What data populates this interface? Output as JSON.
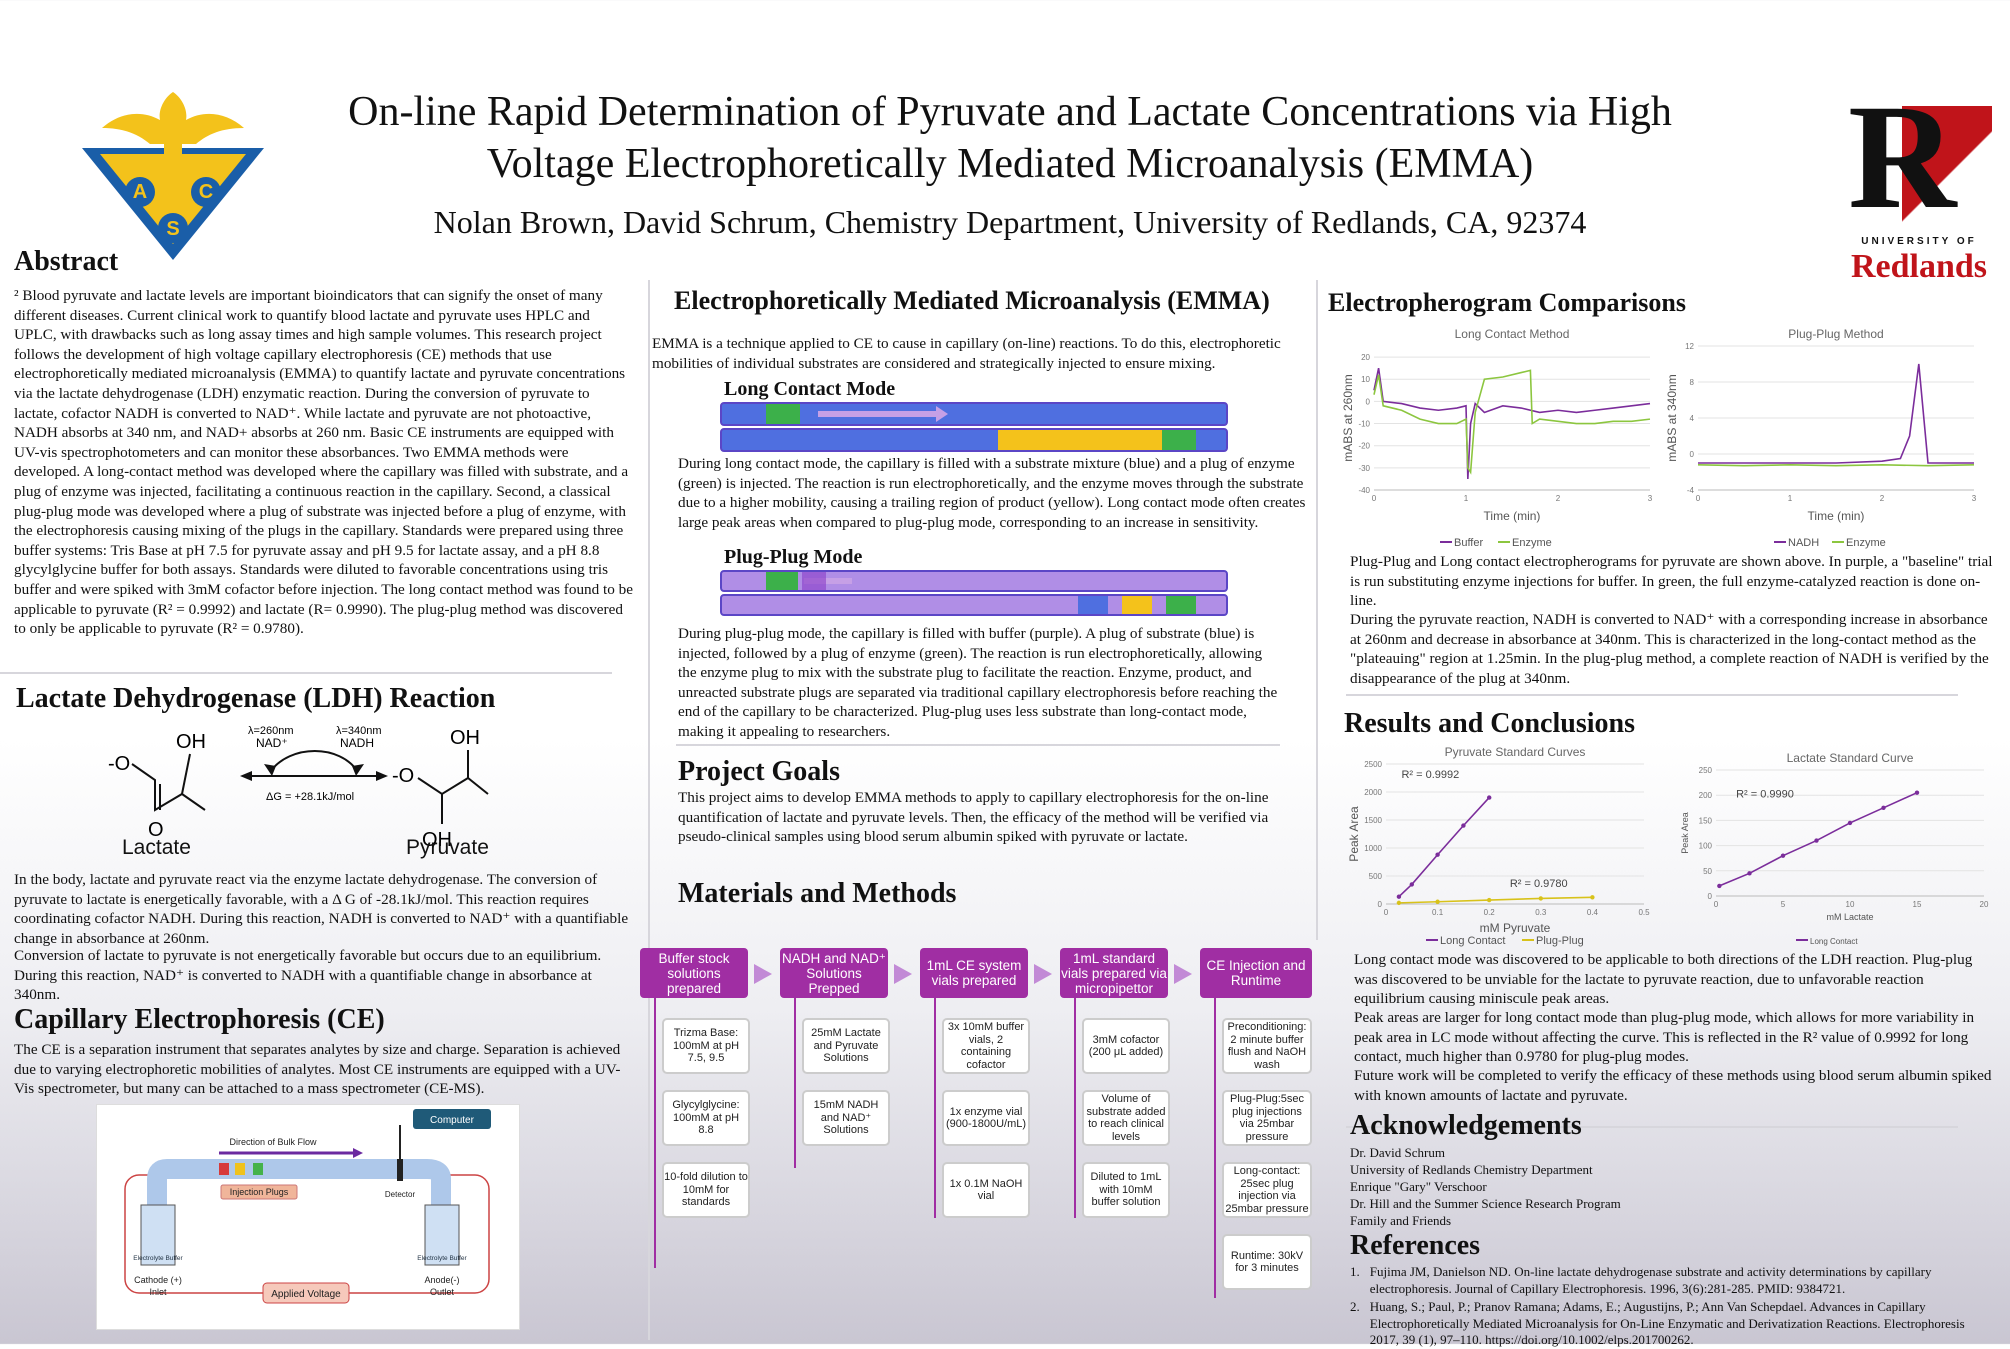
{
  "title_line1": "On-line Rapid Determination of Pyruvate and Lactate Concentrations via High",
  "title_line2": "Voltage Electrophoretically Mediated Microanalysis (EMMA)",
  "authors": "Nolan Brown, David Schrum, Chemistry Department, University of Redlands, CA, 92374",
  "acs_logo": {
    "letters": [
      "A",
      "C",
      "S"
    ]
  },
  "redlands_logo": {
    "letter": "R",
    "line1": "UNIVERSITY OF",
    "line2": "Redlands",
    "accent": "#c0141a"
  },
  "abstract": {
    "heading": "Abstract",
    "text": "² Blood pyruvate and lactate levels are important bioindicators that can signify the onset of many different diseases. Current clinical work to quantify blood lactate and pyruvate uses HPLC and UPLC, with drawbacks such as long assay times and high sample volumes. This research project follows the development of high voltage capillary electrophoresis (CE) methods that use electrophoretically mediated microanalysis (EMMA) to quantify lactate and pyruvate concentrations via the lactate dehydrogenase (LDH) enzymatic reaction. During the conversion of pyruvate to lactate, cofactor NADH is converted to NAD⁺. While lactate and pyruvate are not photoactive, NADH absorbs at 340 nm, and NAD+ absorbs at 260 nm. Basic CE instruments are equipped with UV-vis spectrophotometers and can monitor these absorbances. Two EMMA methods were developed. A long-contact method was developed where the capillary was filled with substrate, and a plug of enzyme was injected, facilitating a continuous reaction in the capillary. Second, a classical plug-plug mode was developed where a plug of substrate was injected before a plug of enzyme, with the electrophoresis causing mixing of the plugs in the capillary. Standards were prepared using three buffer systems: Tris Base at pH 7.5 for pyruvate assay and pH 9.5 for lactate assay, and a pH 8.8 glycylglycine buffer for both assays. Standards were diluted to favorable concentrations using tris buffer and were spiked with 3mM cofactor before injection. The long contact method was found to be applicable to pyruvate (R² = 0.9992) and lactate (R= 0.9990). The plug-plug method was discovered to only be applicable to pyruvate (R² = 0.9780)."
  },
  "ldh": {
    "heading": "Lactate Dehydrogenase (LDH) Reaction",
    "left_label": "Lactate",
    "right_label": "Pyruvate",
    "oh": "OH",
    "o": "O",
    "ominus": "-O",
    "lam1": "λ=260nm",
    "nadp": "NAD⁺",
    "lam2": "λ=340nm",
    "nadh": "NADH",
    "dg": "ΔG = +28.1kJ/mol",
    "text1": "In the body, lactate and pyruvate react via the enzyme lactate dehydrogenase. The conversion of pyruvate to lactate is energetically favorable, with a Δ G of  -28.1kJ/mol. This reaction requires coordinating cofactor NADH. During this reaction, NADH is converted to NAD⁺ with a quantifiable change in absorbance at 260nm.",
    "text2": "Conversion of lactate to pyruvate is not energetically favorable but occurs due to an equilibrium. During this reaction, NAD⁺ is converted to NADH with a quantifiable change in absorbance at 340nm."
  },
  "ce": {
    "heading": "Capillary Electrophoresis (CE)",
    "text": "The CE is a separation instrument that separates analytes by size and charge. Separation is achieved due to varying electrophoretic mobilities of analytes. Most CE instruments are equipped with a UV-Vis spectrometer, but many can be attached to a mass spectrometer (CE-MS).",
    "diagram": {
      "computer": "Computer",
      "bulk_flow": "Direction of Bulk Flow",
      "injection_plugs": "Injection Plugs",
      "detector": "Detector",
      "buffer_left": "Electrolyte Buffer",
      "buffer_right": "Electrolyte Buffer",
      "cathode": "Cathode (+)",
      "inlet": "Inlet",
      "anode": "Anode(-)",
      "outlet": "Outlet",
      "applied_voltage": "Applied Voltage"
    }
  },
  "emma": {
    "heading": "Electrophoretically Mediated Microanalysis (EMMA)",
    "intro": "EMMA is a technique applied to CE to cause in capillary (on-line) reactions. To do this, electrophoretic mobilities of individual substrates are considered and strategically injected to ensure mixing.",
    "long_contact_title": "Long Contact Mode",
    "long_contact_text": "During long contact mode, the capillary is filled with a substrate mixture (blue) and a plug of enzyme (green) is injected. The reaction is run electrophoretically, and the enzyme moves through the substrate due to a higher mobility, causing a trailing region of product (yellow). Long contact mode often creates large peak areas when compared to plug-plug mode, corresponding to an increase in sensitivity.",
    "plug_plug_title": "Plug-Plug Mode",
    "plug_plug_text": "During plug-plug mode, the capillary is filled with buffer (purple). A plug of substrate (blue) is injected, followed by a plug of enzyme (green). The reaction is run electrophoretically, allowing the enzyme plug to mix with the substrate plug to facilitate the reaction. Enzyme, product, and unreacted substrate plugs are separated via traditional capillary electrophoresis before reaching the end of the capillary to be characterized. Plug-plug uses less substrate than long-contact mode, making it appealing to researchers."
  },
  "goals": {
    "heading": "Project Goals",
    "text": "This project aims to develop EMMA methods to apply to capillary electrophoresis for the on-line quantification of lactate and pyruvate levels. Then, the efficacy of the method will be verified via pseudo-clinical samples using blood serum albumin spiked with pyruvate or lactate."
  },
  "methods": {
    "heading": "Materials and Methods",
    "columns": [
      {
        "head": "Buffer stock solutions prepared",
        "boxes": [
          "Trizma Base: 100mM at pH 7.5, 9.5",
          "Glycylglycine: 100mM at pH 8.8",
          "10-fold dilution to 10mM for standards"
        ]
      },
      {
        "head": "NADH and NAD⁺ Solutions Prepped",
        "boxes": [
          "25mM Lactate and Pyruvate Solutions",
          "15mM NADH and NAD⁺ Solutions"
        ]
      },
      {
        "head": "1mL CE system vials prepared",
        "boxes": [
          "3x 10mM buffer vials, 2 containing cofactor",
          "1x enzyme vial (900-1800U/mL)",
          "1x 0.1M NaOH vial"
        ]
      },
      {
        "head": "1mL standard vials prepared via micropipettor",
        "boxes": [
          "3mM cofactor (200 μL added)",
          "Volume of substrate added to reach clinical levels",
          "Diluted to 1mL with 10mM buffer solution"
        ]
      },
      {
        "head": "CE Injection and Runtime",
        "boxes": [
          "Preconditioning: 2 minute buffer flush and NaOH wash",
          "Plug-Plug:5sec plug injections via 25mbar pressure",
          "Long-contact: 25sec plug injection via 25mbar pressure",
          "Runtime: 30kV for 3 minutes"
        ]
      }
    ]
  },
  "electropherogram": {
    "heading": "Electropherogram Comparisons",
    "text1": "Plug-Plug and Long contact electropherograms for pyruvate are shown above. In purple, a \"baseline\" trial is run substituting enzyme injections for buffer. In green, the full enzyme-catalyzed reaction is done on-line.",
    "text2": "During the pyruvate reaction, NADH is converted to NAD⁺ with a corresponding increase in absorbance at 260nm and decrease in absorbance at 340nm. This is characterized in the long-contact method as the \"plateauing\" region at 1.25min. In the plug-plug method, a complete reaction of NADH is verified by the disappearance of the plug at 340nm."
  },
  "results": {
    "heading": "Results and Conclusions",
    "text1": "Long contact mode was discovered to be applicable to both directions of the LDH reaction. Plug-plug was discovered to be unviable for the lactate to pyruvate reaction, due to unfavorable reaction equilibrium causing miniscule peak areas.",
    "text2": "Peak areas are larger for long contact mode than plug-plug mode, which allows for more variability in peak area in LC mode without affecting the curve. This is reflected in the R² value of 0.9992 for long contact, much higher than 0.9780 for plug-plug modes.",
    "text3": "Future work will be completed to verify the efficacy of these methods using blood serum albumin spiked with known amounts of lactate and pyruvate."
  },
  "ack": {
    "heading": "Acknowledgements",
    "lines": [
      "Dr. David Schrum",
      "University of Redlands Chemistry Department",
      "Enrique \"Gary\" Verschoor",
      "Dr. Hill and the Summer Science Research Program",
      "Family and Friends"
    ]
  },
  "refs": {
    "heading": "References",
    "items": [
      {
        "num": "1.",
        "text": "Fujima JM, Danielson ND. On-line lactate dehydrogenase substrate and activity determinations by capillary electrophoresis. Journal of Capillary Electrophoresis. 1996, 3(6):281-285. PMID: 9384721."
      },
      {
        "num": "2.",
        "text": "Huang, S.; Paul, P.; Pranov Ramana; Adams, E.; Augustijns, P.; Ann Van Schepdael. Advances in Capillary Electrophoretically Mediated Microanalysis for On-Line Enzymatic and Derivatization Reactions. Electrophoresis 2017, 39 (1), 97–110. https://doi.org/10.1002/elps.201700262."
      }
    ]
  },
  "chart_data": [
    {
      "type": "line",
      "title": "Long Contact Method",
      "xlabel": "Time (min)",
      "ylabel": "mABS at 260nm",
      "xlim": [
        0,
        3
      ],
      "ylim": [
        -40,
        25
      ],
      "series": [
        {
          "name": "Buffer",
          "color": "#7b2d9b",
          "x": [
            0,
            0.05,
            0.1,
            0.3,
            0.5,
            0.7,
            0.9,
            1.0,
            1.02,
            1.05,
            1.1,
            1.2,
            1.4,
            1.6,
            1.8,
            2.0,
            2.2,
            2.4,
            2.6,
            2.8,
            3.0
          ],
          "y": [
            5,
            15,
            0,
            -1,
            -3,
            -4,
            -3,
            -2,
            -35,
            -10,
            -1,
            -5,
            -2,
            -3,
            -5,
            -4,
            -5,
            -4,
            -3,
            -2,
            -1
          ]
        },
        {
          "name": "Enzyme",
          "color": "#8cc63f",
          "x": [
            0,
            0.05,
            0.1,
            0.3,
            0.5,
            0.7,
            0.9,
            1.0,
            1.02,
            1.05,
            1.1,
            1.2,
            1.4,
            1.6,
            1.7,
            1.72,
            1.8,
            2.0,
            2.2,
            2.4,
            2.6,
            2.8,
            3.0
          ],
          "y": [
            3,
            12,
            -2,
            -4,
            -8,
            -10,
            -10,
            -8,
            -30,
            -32,
            -5,
            10,
            11,
            13,
            14,
            -10,
            -8,
            -9,
            -10,
            -10,
            -9,
            -9,
            -8
          ]
        }
      ]
    },
    {
      "type": "line",
      "title": "Plug-Plug Method",
      "xlabel": "Time (min)",
      "ylabel": "mABS at 340nm",
      "xlim": [
        0,
        3
      ],
      "ylim": [
        -4,
        12
      ],
      "series": [
        {
          "name": "NADH",
          "color": "#7b2d9b",
          "x": [
            0,
            0.5,
            1.0,
            1.5,
            2.0,
            2.2,
            2.3,
            2.4,
            2.5,
            2.6,
            3.0
          ],
          "y": [
            -1,
            -1,
            -1,
            -1,
            -0.8,
            -0.5,
            2,
            10,
            -1,
            -1,
            -1
          ]
        },
        {
          "name": "Enzyme",
          "color": "#8cc63f",
          "x": [
            0,
            0.5,
            1.0,
            1.5,
            2.0,
            2.5,
            3.0
          ],
          "y": [
            -1.2,
            -1.3,
            -1.2,
            -1.3,
            -1.2,
            -1.3,
            -1.2
          ]
        }
      ]
    },
    {
      "type": "scatter",
      "title": "Pyruvate Standard Curves",
      "xlabel": "mM Pyruvate",
      "ylabel": "Peak Area",
      "xlim": [
        0,
        0.5
      ],
      "ylim": [
        0,
        2500
      ],
      "annotations": [
        "R² = 0.9992",
        "R² = 0.9780"
      ],
      "series": [
        {
          "name": "Long Contact",
          "color": "#7b2d9b",
          "x": [
            0.025,
            0.05,
            0.1,
            0.15,
            0.2
          ],
          "y": [
            130,
            350,
            880,
            1400,
            1900
          ]
        },
        {
          "name": "Plug-Plug",
          "color": "#d8c21a",
          "x": [
            0.025,
            0.1,
            0.2,
            0.3,
            0.4
          ],
          "y": [
            20,
            40,
            70,
            100,
            120
          ]
        }
      ]
    },
    {
      "type": "scatter",
      "title": "Lactate Standard Curve",
      "xlabel": "mM Lactate",
      "ylabel": "Peak Area",
      "xlim": [
        0,
        20
      ],
      "ylim": [
        0,
        250
      ],
      "annotations": [
        "R² = 0.9990"
      ],
      "series": [
        {
          "name": "Long Contact",
          "color": "#7b2d9b",
          "x": [
            0.25,
            2.5,
            5,
            7.5,
            10,
            12.5,
            15
          ],
          "y": [
            20,
            45,
            80,
            110,
            145,
            175,
            205
          ]
        }
      ]
    }
  ]
}
